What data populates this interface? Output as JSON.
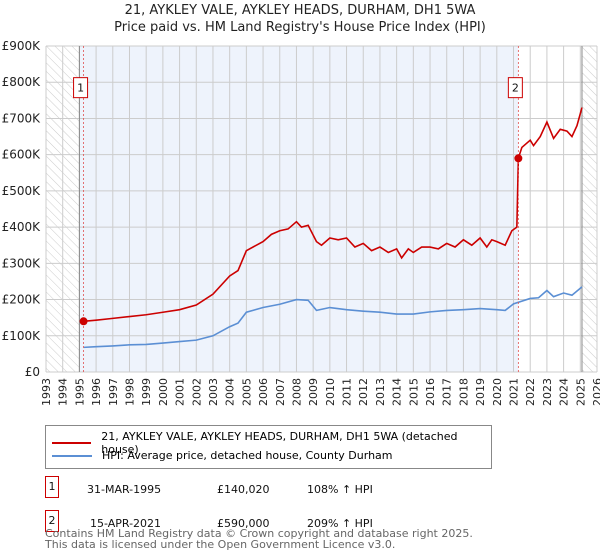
{
  "title": "21, AYKLEY VALE, AYKLEY HEADS, DURHAM, DH1 5WA",
  "subtitle": "Price paid vs. HM Land Registry's House Price Index (HPI)",
  "colors": {
    "property": "#cc0000",
    "hpi": "#5b8fd4"
  },
  "chart_data": {
    "type": "line",
    "xlim": [
      1993,
      2026
    ],
    "ylim": [
      0,
      900
    ],
    "y_ticks": [
      {
        "v": 0,
        "l": "£0"
      },
      {
        "v": 100,
        "l": "£100K"
      },
      {
        "v": 200,
        "l": "£200K"
      },
      {
        "v": 300,
        "l": "£300K"
      },
      {
        "v": 400,
        "l": "£400K"
      },
      {
        "v": 500,
        "l": "£500K"
      },
      {
        "v": 600,
        "l": "£600K"
      },
      {
        "v": 700,
        "l": "£700K"
      },
      {
        "v": 800,
        "l": "£800K"
      },
      {
        "v": 900,
        "l": "£900K"
      }
    ],
    "x_ticks": [
      "1993",
      "1994",
      "1995",
      "1996",
      "1997",
      "1998",
      "1999",
      "2000",
      "2001",
      "2002",
      "2003",
      "2004",
      "2005",
      "2006",
      "2007",
      "2008",
      "2009",
      "2010",
      "2011",
      "2012",
      "2013",
      "2014",
      "2015",
      "2016",
      "2017",
      "2018",
      "2019",
      "2020",
      "2021",
      "2022",
      "2023",
      "2024",
      "2025",
      "2026"
    ],
    "series": [
      {
        "name": "21, AYKLEY VALE, AYKLEY HEADS, DURHAM, DH1 5WA (detached house)",
        "points": [
          [
            1995.25,
            140
          ],
          [
            1996,
            143
          ],
          [
            1997,
            148
          ],
          [
            1998,
            153
          ],
          [
            1999,
            158
          ],
          [
            2000,
            165
          ],
          [
            2001,
            172
          ],
          [
            2002,
            185
          ],
          [
            2003,
            215
          ],
          [
            2004,
            265
          ],
          [
            2004.5,
            280
          ],
          [
            2005,
            335
          ],
          [
            2006,
            360
          ],
          [
            2006.5,
            380
          ],
          [
            2007,
            390
          ],
          [
            2007.5,
            395
          ],
          [
            2008,
            415
          ],
          [
            2008.3,
            400
          ],
          [
            2008.7,
            405
          ],
          [
            2009.2,
            360
          ],
          [
            2009.5,
            350
          ],
          [
            2010,
            370
          ],
          [
            2010.5,
            365
          ],
          [
            2011,
            370
          ],
          [
            2011.5,
            345
          ],
          [
            2012,
            355
          ],
          [
            2012.5,
            335
          ],
          [
            2013,
            345
          ],
          [
            2013.5,
            330
          ],
          [
            2014,
            340
          ],
          [
            2014.3,
            315
          ],
          [
            2014.7,
            340
          ],
          [
            2015,
            330
          ],
          [
            2015.5,
            345
          ],
          [
            2016,
            345
          ],
          [
            2016.5,
            340
          ],
          [
            2017,
            355
          ],
          [
            2017.5,
            345
          ],
          [
            2018,
            365
          ],
          [
            2018.5,
            350
          ],
          [
            2019,
            370
          ],
          [
            2019.4,
            345
          ],
          [
            2019.7,
            365
          ],
          [
            2020,
            360
          ],
          [
            2020.5,
            350
          ],
          [
            2020.9,
            390
          ],
          [
            2021.2,
            400
          ],
          [
            2021.29,
            590
          ],
          [
            2021.5,
            620
          ],
          [
            2022,
            640
          ],
          [
            2022.2,
            625
          ],
          [
            2022.6,
            650
          ],
          [
            2023,
            690
          ],
          [
            2023.4,
            645
          ],
          [
            2023.8,
            670
          ],
          [
            2024.2,
            665
          ],
          [
            2024.5,
            650
          ],
          [
            2024.8,
            680
          ],
          [
            2025.1,
            730
          ]
        ]
      },
      {
        "name": "HPI: Average price, detached house, County Durham",
        "points": [
          [
            1995.25,
            68
          ],
          [
            1996,
            70
          ],
          [
            1997,
            72
          ],
          [
            1998,
            75
          ],
          [
            1999,
            76
          ],
          [
            2000,
            80
          ],
          [
            2001,
            84
          ],
          [
            2002,
            88
          ],
          [
            2003,
            100
          ],
          [
            2004,
            125
          ],
          [
            2004.5,
            135
          ],
          [
            2005,
            165
          ],
          [
            2006,
            178
          ],
          [
            2007,
            187
          ],
          [
            2008,
            200
          ],
          [
            2008.7,
            198
          ],
          [
            2009.2,
            170
          ],
          [
            2010,
            178
          ],
          [
            2011,
            172
          ],
          [
            2012,
            168
          ],
          [
            2013,
            165
          ],
          [
            2014,
            160
          ],
          [
            2015,
            160
          ],
          [
            2016,
            166
          ],
          [
            2017,
            170
          ],
          [
            2018,
            172
          ],
          [
            2019,
            175
          ],
          [
            2020,
            172
          ],
          [
            2020.5,
            170
          ],
          [
            2021,
            188
          ],
          [
            2022,
            203
          ],
          [
            2022.5,
            205
          ],
          [
            2023,
            225
          ],
          [
            2023.4,
            208
          ],
          [
            2024,
            218
          ],
          [
            2024.5,
            212
          ],
          [
            2025.1,
            235
          ]
        ]
      }
    ],
    "sales": [
      {
        "label": "1",
        "x": 1995.25,
        "y": 140.02
      },
      {
        "label": "2",
        "x": 2021.29,
        "y": 590
      }
    ]
  },
  "legend": {
    "property": "21, AYKLEY VALE, AYKLEY HEADS, DURHAM, DH1 5WA (detached house)",
    "hpi": "HPI: Average price, detached house, County Durham"
  },
  "transactions": [
    {
      "n": "1",
      "date": "31-MAR-1995",
      "price": "£140,020",
      "hpi": "108% ↑ HPI"
    },
    {
      "n": "2",
      "date": "15-APR-2021",
      "price": "£590,000",
      "hpi": "209% ↑ HPI"
    }
  ],
  "footer": {
    "line1": "Contains HM Land Registry data © Crown copyright and database right 2025.",
    "line2": "This data is licensed under the Open Government Licence v3.0."
  }
}
